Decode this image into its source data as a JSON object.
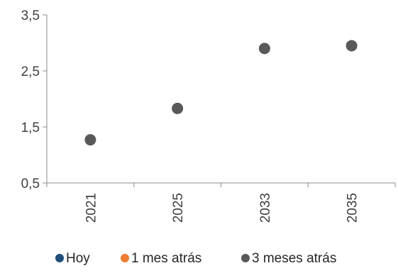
{
  "chart_data": {
    "type": "scatter",
    "categories": [
      "2021",
      "2025",
      "2033",
      "2035"
    ],
    "ylim": [
      0.5,
      3.5
    ],
    "yticks": [
      "0,5",
      "1,5",
      "2,5",
      "3,5"
    ],
    "ytick_values": [
      0.5,
      1.5,
      2.5,
      3.5
    ],
    "grid": false,
    "legend_position": "bottom",
    "series": [
      {
        "name": "Hoy",
        "color": "#1f4e79",
        "values": []
      },
      {
        "name": "1 mes atrás",
        "color": "#ed7d31",
        "values": []
      },
      {
        "name": "3 meses atrás",
        "color": "#595959",
        "values": [
          1.27,
          1.83,
          2.9,
          2.95
        ]
      }
    ]
  }
}
